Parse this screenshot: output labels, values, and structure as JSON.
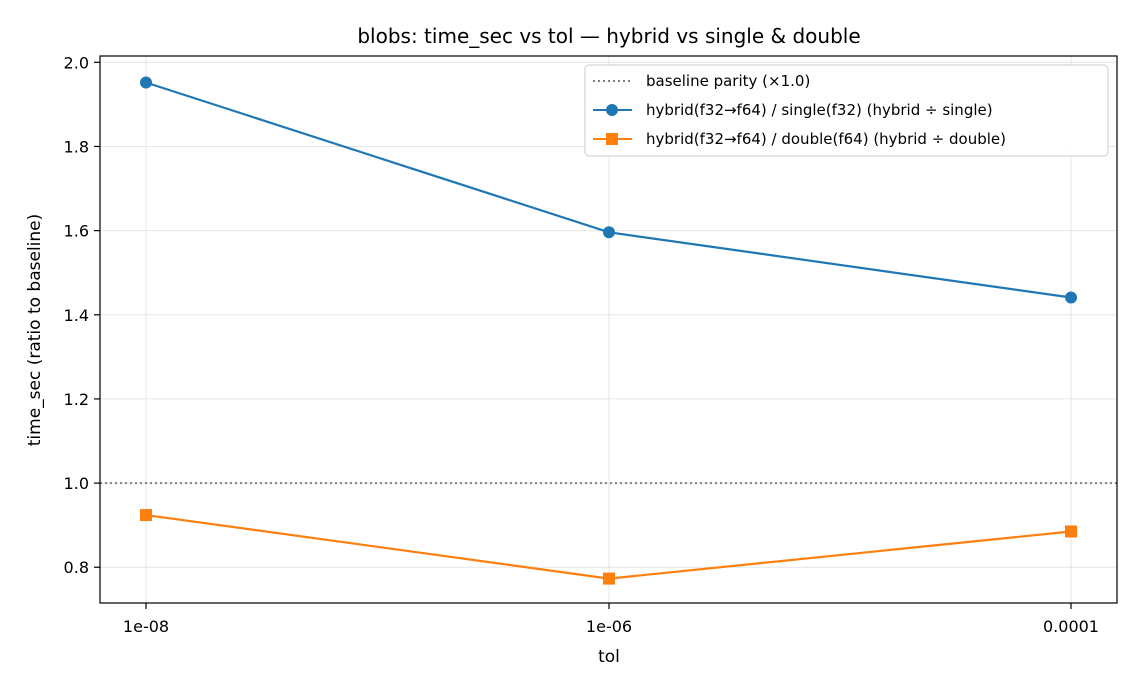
{
  "chart_data": {
    "type": "line",
    "title": "blobs: time_sec vs tol — hybrid vs single & double",
    "xlabel": "tol",
    "ylabel": "time_sec (ratio to baseline)",
    "x": [
      "1e-08",
      "1e-06",
      "0.0001"
    ],
    "ylim": [
      0.715,
      2.015
    ],
    "yticks": [
      0.8,
      1.0,
      1.2,
      1.4,
      1.6,
      1.8,
      2.0
    ],
    "ytick_labels": [
      "0.8",
      "1.0",
      "1.2",
      "1.4",
      "1.6",
      "1.8",
      "2.0"
    ],
    "grid": true,
    "legend_position": "top-right",
    "baseline": {
      "name": "baseline parity (×1.0)",
      "value": 1.0,
      "color": "#808080",
      "style": "dotted"
    },
    "series": [
      {
        "name": "hybrid(f32→f64) / single(f32)  (hybrid ÷ single)",
        "values": [
          1.952,
          1.596,
          1.441
        ],
        "color": "#1f77b4",
        "marker": "circle"
      },
      {
        "name": "hybrid(f32→f64) / double(f64)  (hybrid ÷ double)",
        "values": [
          0.924,
          0.773,
          0.885
        ],
        "color": "#ff7f0e",
        "marker": "square"
      }
    ]
  }
}
